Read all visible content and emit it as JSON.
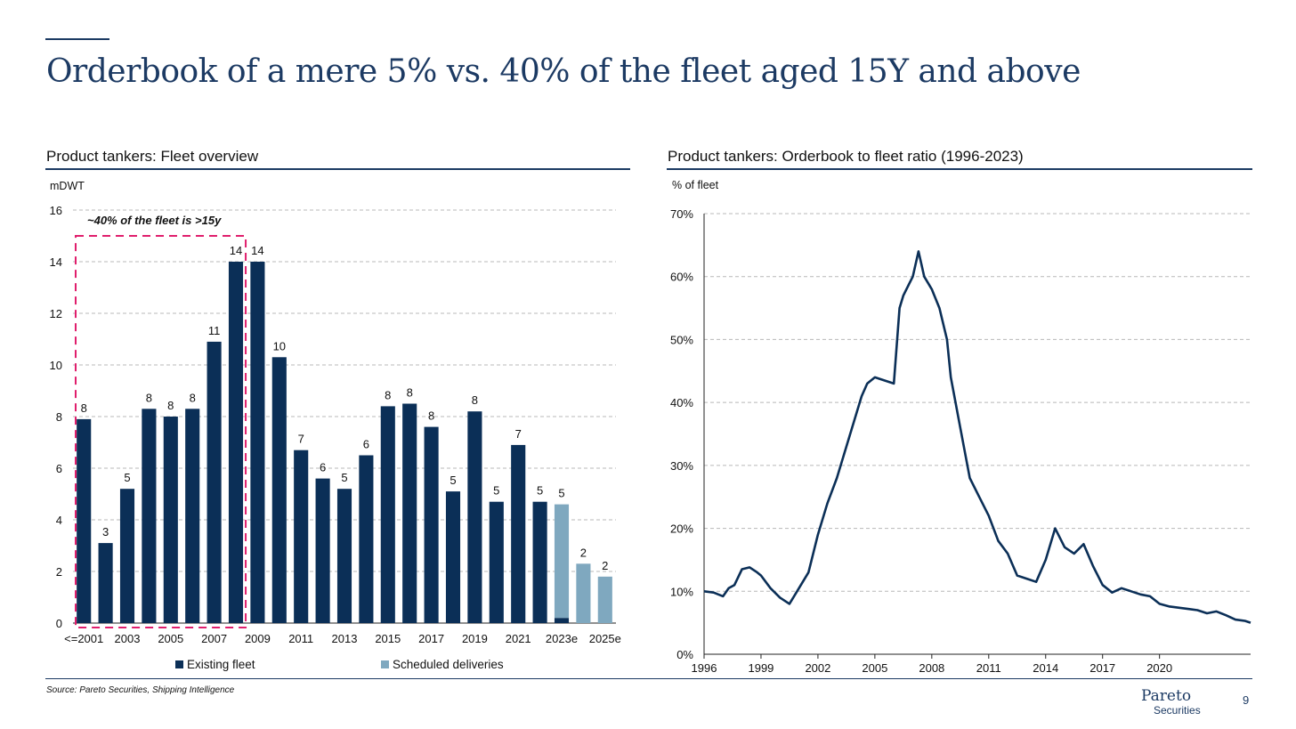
{
  "header": {
    "title": "Orderbook of a mere 5% vs. 40% of the fleet aged 15Y and above"
  },
  "colors": {
    "navy": "#0b2f57",
    "light_blue": "#7fa8bf",
    "pink": "#e01e6c",
    "grid": "#b8b8b8"
  },
  "left_panel": {
    "title": "Product tankers: Fleet overview",
    "unit": "mDWT",
    "annotation": "~40% of the fleet is >15y",
    "legend": {
      "existing": "Existing fleet",
      "scheduled": "Scheduled deliveries"
    }
  },
  "right_panel": {
    "title": "Product tankers: Orderbook to fleet ratio (1996-2023)",
    "unit": "% of fleet"
  },
  "footer": {
    "source": "Source: Pareto Securities, Shipping Intelligence",
    "page": "9",
    "logo_main": "Pareto",
    "logo_sub": "Securities"
  },
  "chart_data": [
    {
      "type": "bar",
      "title": "Product tankers: Fleet overview",
      "ylabel": "mDWT",
      "ylim": [
        0,
        16
      ],
      "yticks": [
        0,
        2,
        4,
        6,
        8,
        10,
        12,
        14,
        16
      ],
      "categories": [
        "<=2001",
        "2002",
        "2003",
        "2004",
        "2005",
        "2006",
        "2007",
        "2008",
        "2009",
        "2010",
        "2011",
        "2012",
        "2013",
        "2014",
        "2015",
        "2016",
        "2017",
        "2018",
        "2019",
        "2020",
        "2021",
        "2022",
        "2023e",
        "2024e",
        "2025e"
      ],
      "x_tick_labels": [
        "<=2001",
        "",
        "2003",
        "",
        "2005",
        "",
        "2007",
        "",
        "2009",
        "",
        "2011",
        "",
        "2013",
        "",
        "2015",
        "",
        "2017",
        "",
        "2019",
        "",
        "2021",
        "",
        "2023e",
        "",
        "2025e"
      ],
      "series": [
        {
          "name": "Existing fleet",
          "values": [
            7.9,
            3.1,
            5.2,
            8.3,
            8.0,
            8.3,
            10.9,
            14.0,
            14.0,
            10.3,
            6.7,
            5.6,
            5.2,
            6.5,
            8.4,
            8.5,
            7.6,
            5.1,
            8.2,
            4.7,
            6.9,
            4.7,
            0.2,
            0,
            0
          ]
        },
        {
          "name": "Scheduled deliveries",
          "values": [
            0,
            0,
            0,
            0,
            0,
            0,
            0,
            0,
            0,
            0,
            0,
            0,
            0,
            0,
            0,
            0,
            0,
            0,
            0,
            0,
            0,
            0,
            4.4,
            2.3,
            1.8
          ]
        }
      ],
      "data_labels": [
        "8",
        "3",
        "5",
        "8",
        "8",
        "8",
        "11",
        "14",
        "14",
        "10",
        "7",
        "6",
        "5",
        "6",
        "8",
        "8",
        "8",
        "5",
        "8",
        "5",
        "7",
        "5",
        "5",
        "2",
        "2"
      ],
      "highlight": {
        "from": "<=2001",
        "to": "2008",
        "label": "~40% of the fleet is >15y"
      }
    },
    {
      "type": "line",
      "title": "Product tankers: Orderbook to fleet ratio (1996-2023)",
      "ylabel": "% of fleet",
      "ylim": [
        0,
        70
      ],
      "yticks": [
        0,
        10,
        20,
        30,
        40,
        50,
        60,
        70
      ],
      "y_tick_suffix": "%",
      "xlim": [
        1996,
        2024.8
      ],
      "xticks": [
        1996,
        1999,
        2002,
        2005,
        2008,
        2011,
        2014,
        2017,
        2020
      ],
      "series": [
        {
          "name": "Orderbook to fleet ratio",
          "x": [
            1996,
            1996.5,
            1997,
            1997.3,
            1997.6,
            1998,
            1998.4,
            1998.8,
            1999,
            1999.5,
            2000,
            2000.5,
            2001,
            2001.5,
            2002,
            2002.5,
            2003,
            2003.5,
            2004,
            2004.3,
            2004.6,
            2005,
            2005.5,
            2006,
            2006.3,
            2006.5,
            2007,
            2007.3,
            2007.6,
            2008,
            2008.4,
            2008.8,
            2009,
            2009.5,
            2010,
            2010.5,
            2011,
            2011.5,
            2012,
            2012.5,
            2013,
            2013.5,
            2014,
            2014.5,
            2015,
            2015.5,
            2016,
            2016.5,
            2017,
            2017.5,
            2018,
            2018.5,
            2019,
            2019.5,
            2020,
            2020.5,
            2021,
            2021.5,
            2022,
            2022.5,
            2023,
            2023.5,
            2024,
            2024.5,
            2024.8
          ],
          "values": [
            10,
            9.8,
            9.2,
            10.5,
            11,
            13.5,
            13.8,
            13,
            12.5,
            10.5,
            9,
            8,
            10.5,
            13,
            19,
            24,
            28,
            33,
            38,
            41,
            43,
            44,
            43.5,
            43,
            55,
            57,
            60,
            64,
            60,
            58,
            55,
            50,
            44,
            36,
            28,
            25,
            22,
            18,
            16,
            12.5,
            12,
            11.5,
            15,
            20,
            17,
            16,
            17.5,
            14,
            11,
            9.8,
            10.5,
            10,
            9.5,
            9.2,
            8,
            7.6,
            7.4,
            7.2,
            7,
            6.5,
            6.8,
            6.2,
            5.5,
            5.3,
            5
          ]
        }
      ]
    }
  ]
}
